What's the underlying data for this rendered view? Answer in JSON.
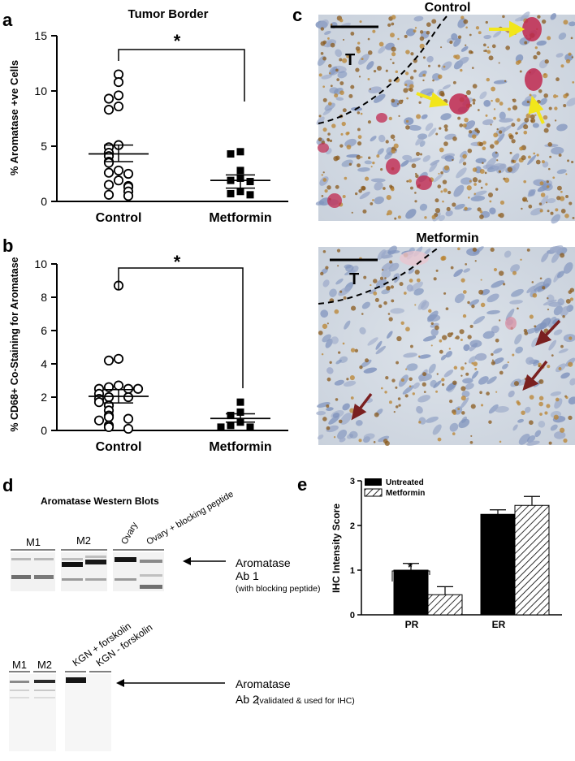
{
  "panels": {
    "a": {
      "label": "a",
      "title": "Tumor Border",
      "ylabel": "% Aromatase +ve Cells",
      "ylim": [
        0,
        15
      ],
      "yticks": [
        "0",
        "5",
        "10",
        "15"
      ],
      "categories": [
        "Control",
        "Metformin"
      ],
      "significance": "*"
    },
    "b": {
      "label": "b",
      "ylabel": "% CD68+ Co-Staining for Aromatase",
      "ylim": [
        0,
        10
      ],
      "yticks": [
        "0",
        "2",
        "4",
        "6",
        "8",
        "10"
      ],
      "categories": [
        "Control",
        "Metformin"
      ],
      "significance": "*"
    },
    "c": {
      "label": "c",
      "control_title": "Control",
      "metformin_title": "Metformin",
      "tumor_marker": "T"
    },
    "d": {
      "label": "d",
      "title": "Aromatase Western Blots",
      "blot1_lanes": [
        "M1",
        "M2",
        "Ovary",
        "Ovary + blocking peptide"
      ],
      "blot1_annotation": [
        "Aromatase",
        "Ab 1",
        "(with blocking peptide)"
      ],
      "blot2_lanes": [
        "M1",
        "M2",
        "KGN + forskolin",
        "KGN - forskolin"
      ],
      "blot2_annotation": [
        "Aromatase",
        "Ab 2",
        "(validated & used for IHC)"
      ]
    },
    "e": {
      "label": "e",
      "ylabel": "IHC Intensity Score",
      "ylim": [
        0,
        3
      ],
      "yticks": [
        "0",
        "1",
        "2",
        "3"
      ],
      "categories": [
        "PR",
        "ER"
      ],
      "legend": [
        "Untreated",
        "Metformin"
      ],
      "significance": "*"
    }
  },
  "chart_data": [
    {
      "type": "scatter",
      "panel": "a",
      "title": "Tumor Border",
      "ylabel": "% Aromatase +ve Cells",
      "categories": [
        "Control",
        "Metformin"
      ],
      "ylim": [
        0,
        15
      ],
      "series": [
        {
          "name": "Control",
          "values": [
            11.5,
            10.8,
            9.6,
            9.3,
            8.6,
            8.3,
            5.1,
            4.9,
            4.4,
            4.1,
            3.6,
            3.5,
            2.8,
            2.6,
            2.5,
            1.9,
            1.5,
            1.4,
            1.3,
            0.9,
            0.6,
            0.5
          ],
          "mean": 4.3,
          "sem_low": 3.6,
          "sem_high": 5.1
        },
        {
          "name": "Metformin",
          "values": [
            4.5,
            4.3,
            2.8,
            2.1,
            1.9,
            1.8,
            0.9,
            0.7,
            0.6
          ],
          "mean": 1.9,
          "sem_low": 1.2,
          "sem_high": 2.4
        }
      ],
      "grid": false
    },
    {
      "type": "scatter",
      "panel": "b",
      "ylabel": "% CD68+ Co-Staining for Aromatase",
      "categories": [
        "Control",
        "Metformin"
      ],
      "ylim": [
        0,
        10
      ],
      "series": [
        {
          "name": "Control",
          "values": [
            8.7,
            4.3,
            4.2,
            2.7,
            2.6,
            2.5,
            2.5,
            2.5,
            2.2,
            2.0,
            2.0,
            1.9,
            1.7,
            1.5,
            1.2,
            0.9,
            0.8,
            0.7,
            0.6,
            0.3,
            0.2,
            0.1
          ],
          "mean": 2.05,
          "sem_low": 1.65,
          "sem_high": 2.45
        },
        {
          "name": "Metformin",
          "values": [
            1.7,
            1.1,
            0.9,
            0.5,
            0.3,
            0.2,
            0.2
          ],
          "mean": 0.72,
          "sem_low": 0.5,
          "sem_high": 1.0
        }
      ],
      "grid": false
    },
    {
      "type": "bar",
      "panel": "e",
      "ylabel": "IHC Intensity Score",
      "categories": [
        "PR",
        "ER"
      ],
      "ylim": [
        0,
        3
      ],
      "series": [
        {
          "name": "Untreated",
          "values": [
            1.0,
            2.25
          ],
          "error": [
            0.15,
            0.1
          ]
        },
        {
          "name": "Metformin",
          "values": [
            0.45,
            2.45
          ],
          "error": [
            0.18,
            0.2
          ]
        }
      ],
      "legend_position": "top-left",
      "grid": false
    }
  ]
}
